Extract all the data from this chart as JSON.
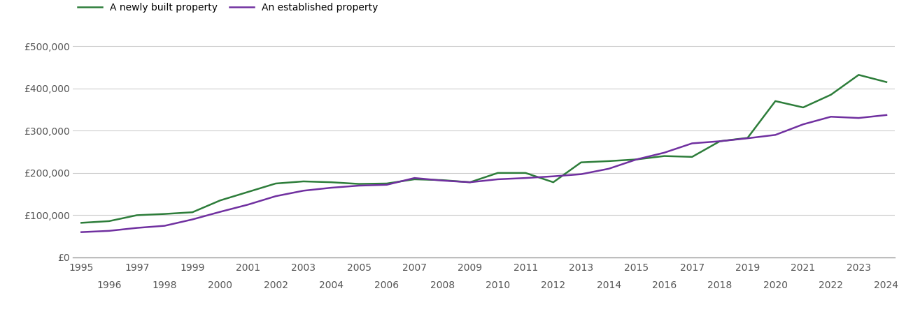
{
  "newly_built": {
    "years": [
      1995,
      1996,
      1997,
      1998,
      1999,
      2000,
      2001,
      2002,
      2003,
      2004,
      2005,
      2006,
      2007,
      2008,
      2009,
      2010,
      2011,
      2012,
      2013,
      2014,
      2015,
      2016,
      2017,
      2018,
      2019,
      2020,
      2021,
      2022,
      2023,
      2024
    ],
    "values": [
      82000,
      86000,
      100000,
      103000,
      107000,
      135000,
      155000,
      175000,
      180000,
      178000,
      174000,
      175000,
      185000,
      183000,
      178000,
      200000,
      200000,
      178000,
      225000,
      228000,
      232000,
      240000,
      238000,
      275000,
      283000,
      370000,
      355000,
      385000,
      432000,
      415000
    ]
  },
  "established": {
    "years": [
      1995,
      1996,
      1997,
      1998,
      1999,
      2000,
      2001,
      2002,
      2003,
      2004,
      2005,
      2006,
      2007,
      2008,
      2009,
      2010,
      2011,
      2012,
      2013,
      2014,
      2015,
      2016,
      2017,
      2018,
      2019,
      2020,
      2021,
      2022,
      2023,
      2024
    ],
    "values": [
      60000,
      63000,
      70000,
      75000,
      90000,
      108000,
      125000,
      145000,
      158000,
      165000,
      170000,
      172000,
      188000,
      182000,
      178000,
      185000,
      188000,
      192000,
      197000,
      210000,
      232000,
      248000,
      270000,
      275000,
      282000,
      290000,
      315000,
      333000,
      330000,
      337000
    ]
  },
  "newly_color": "#2d7d3a",
  "established_color": "#7030a0",
  "line_width": 1.8,
  "yticks": [
    0,
    100000,
    200000,
    300000,
    400000,
    500000
  ],
  "ytick_labels": [
    "£0",
    "£100,000",
    "£200,000",
    "£300,000",
    "£400,000",
    "£500,000"
  ],
  "xlim_min": 1994.7,
  "xlim_max": 2024.3,
  "ylim": [
    0,
    520000
  ],
  "odd_years": [
    1995,
    1997,
    1999,
    2001,
    2003,
    2005,
    2007,
    2009,
    2011,
    2013,
    2015,
    2017,
    2019,
    2021,
    2023
  ],
  "even_years": [
    1996,
    1998,
    2000,
    2002,
    2004,
    2006,
    2008,
    2010,
    2012,
    2014,
    2016,
    2018,
    2020,
    2022,
    2024
  ],
  "legend_newly": "A newly built property",
  "legend_established": "An established property",
  "background_color": "#ffffff",
  "grid_color": "#cccccc",
  "tick_fontsize": 10,
  "legend_fontsize": 10
}
